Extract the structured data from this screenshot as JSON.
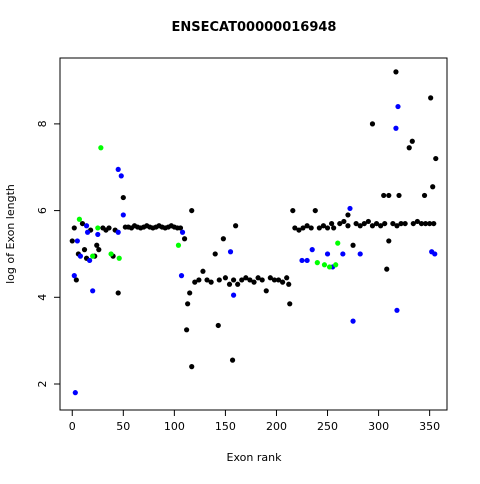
{
  "chart_data": {
    "type": "scatter",
    "title": "ENSECAT00000016948",
    "x_label": "Exon rank",
    "y_label": "log of Exon length",
    "xlim": [
      -12,
      367
    ],
    "ylim": [
      1.4,
      9.52
    ],
    "xticks": [
      0,
      50,
      100,
      150,
      200,
      250,
      300,
      350
    ],
    "yticks": [
      2,
      4,
      6,
      8
    ],
    "series": [
      {
        "color": "#000000",
        "x": [
          0,
          2,
          4,
          6,
          10,
          12,
          14,
          18,
          22,
          24,
          26,
          30,
          33,
          36,
          40,
          42,
          45,
          50,
          52,
          55,
          58,
          61,
          64,
          67,
          70,
          73,
          76,
          79,
          82,
          85,
          88,
          91,
          94,
          97,
          100,
          103,
          106,
          110,
          112,
          113,
          115,
          117,
          117,
          120,
          124,
          128,
          132,
          136,
          140,
          143,
          144,
          148,
          150,
          154,
          157,
          158,
          160,
          162,
          166,
          170,
          174,
          178,
          182,
          186,
          190,
          194,
          198,
          202,
          206,
          210,
          212,
          213,
          216,
          218,
          222,
          226,
          230,
          234,
          238,
          242,
          246,
          250,
          254,
          256,
          262,
          266,
          270,
          270,
          275,
          278,
          282,
          286,
          290,
          294,
          294,
          298,
          302,
          305,
          306,
          308,
          310,
          310,
          314,
          317,
          318,
          320,
          322,
          326,
          330,
          333,
          334,
          338,
          342,
          345,
          346,
          350,
          351,
          353,
          354,
          356
        ],
        "values": [
          5.3,
          5.6,
          4.4,
          5.0,
          5.7,
          5.1,
          4.9,
          5.55,
          4.95,
          5.2,
          5.1,
          5.6,
          5.55,
          5.6,
          4.95,
          5.55,
          4.1,
          6.3,
          5.62,
          5.62,
          5.6,
          5.65,
          5.62,
          5.6,
          5.62,
          5.65,
          5.62,
          5.6,
          5.62,
          5.65,
          5.62,
          5.6,
          5.62,
          5.65,
          5.62,
          5.6,
          5.6,
          5.35,
          3.25,
          3.85,
          4.1,
          2.4,
          6.0,
          4.35,
          4.4,
          4.6,
          4.4,
          4.35,
          5.0,
          3.35,
          4.4,
          5.35,
          4.45,
          4.3,
          2.55,
          4.4,
          5.65,
          4.3,
          4.4,
          4.45,
          4.4,
          4.35,
          4.45,
          4.4,
          4.15,
          4.45,
          4.4,
          4.4,
          4.35,
          4.45,
          4.3,
          3.85,
          6.0,
          5.6,
          5.55,
          5.6,
          5.65,
          5.6,
          6.0,
          5.6,
          5.65,
          5.6,
          5.7,
          5.6,
          5.7,
          5.75,
          5.65,
          5.9,
          5.2,
          5.7,
          5.65,
          5.7,
          5.75,
          5.65,
          8.0,
          5.7,
          5.65,
          6.35,
          5.7,
          4.65,
          6.35,
          5.3,
          5.7,
          9.2,
          5.65,
          6.35,
          5.7,
          5.7,
          7.45,
          7.6,
          5.7,
          5.75,
          5.7,
          6.35,
          5.7,
          5.7,
          8.6,
          6.55,
          5.7,
          7.2
        ]
      },
      {
        "color": "#0000ff",
        "x": [
          2,
          3,
          5,
          8,
          14,
          15,
          17,
          20,
          25,
          45,
          45,
          48,
          50,
          107,
          108,
          155,
          158,
          225,
          230,
          235,
          250,
          255,
          265,
          272,
          275,
          282,
          317,
          318,
          319,
          352,
          355
        ],
        "values": [
          4.5,
          1.8,
          5.3,
          4.95,
          5.65,
          5.5,
          4.85,
          4.15,
          5.45,
          6.95,
          5.5,
          6.8,
          5.9,
          4.5,
          5.5,
          5.05,
          4.05,
          4.85,
          4.85,
          5.1,
          5.0,
          4.7,
          5.0,
          6.05,
          3.45,
          5.0,
          7.9,
          3.7,
          8.4,
          5.05,
          5.0
        ]
      },
      {
        "color": "#00ff00",
        "x": [
          7,
          20,
          25,
          28,
          38,
          46,
          104,
          240,
          247,
          252,
          258,
          260
        ],
        "values": [
          5.8,
          4.95,
          5.6,
          7.45,
          5.0,
          4.9,
          5.2,
          4.8,
          4.75,
          4.7,
          4.75,
          5.25
        ]
      }
    ]
  }
}
